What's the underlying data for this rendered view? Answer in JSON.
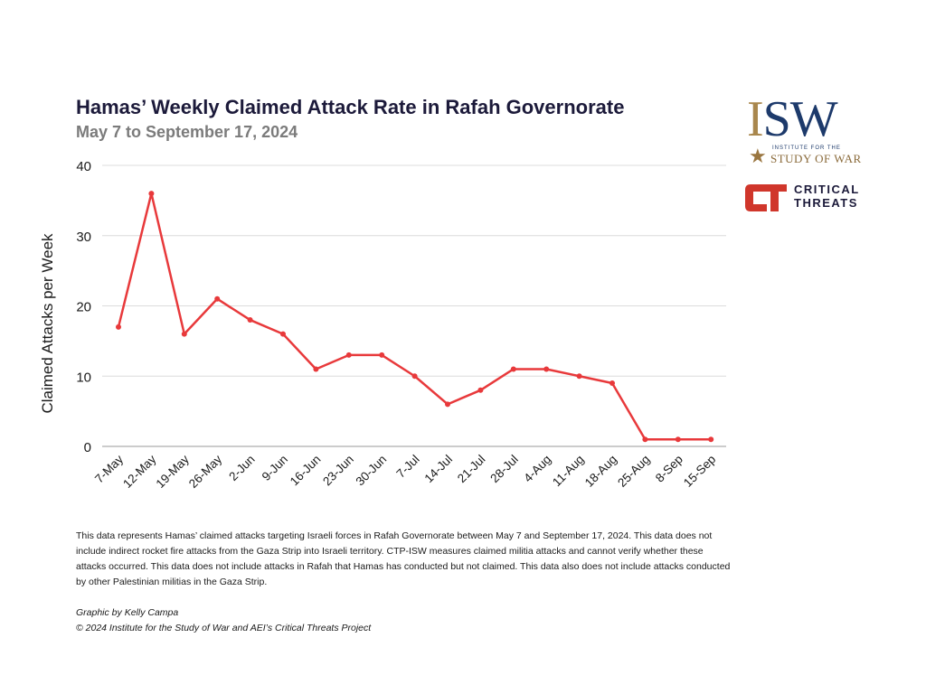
{
  "chart_data": {
    "type": "line",
    "title": "Hamas’ Weekly Claimed Attack Rate in Rafah Governorate",
    "subtitle": "May 7 to September 17, 2024",
    "xlabel": "",
    "ylabel": "Claimed Attacks per Week",
    "ylim": [
      0,
      40
    ],
    "yticks": [
      0,
      10,
      20,
      30,
      40
    ],
    "grid": true,
    "categories": [
      "7-May",
      "12-May",
      "19-May",
      "26-May",
      "2-Jun",
      "9-Jun",
      "16-Jun",
      "23-Jun",
      "30-Jun",
      "7-Jul",
      "14-Jul",
      "21-Jul",
      "28-Jul",
      "4-Aug",
      "11-Aug",
      "18-Aug",
      "25-Aug",
      "8-Sep",
      "15-Sep"
    ],
    "series": [
      {
        "name": "Claimed attacks",
        "color": "#e8393b",
        "values": [
          17,
          36,
          16,
          21,
          18,
          16,
          11,
          13,
          13,
          10,
          6,
          8,
          11,
          11,
          10,
          9,
          1,
          1,
          1
        ]
      }
    ]
  },
  "logos": {
    "isw": {
      "letters_i": "I",
      "letters_sw": "SW",
      "line1": "INSTITUTE FOR THE",
      "line2": "STUDY OF WAR",
      "star": "★"
    },
    "ct": {
      "line1": "CRITICAL",
      "line2": "THREATS"
    }
  },
  "note": "This data represents Hamas’ claimed attacks targeting Israeli forces in Rafah Governorate between May 7 and September 17, 2024. This data does not include indirect rocket fire attacks from the Gaza Strip into Israeli territory. CTP-ISW measures claimed militia attacks and cannot verify whether these attacks occurred. This data does not include attacks in Rafah that Hamas has conducted but not claimed. This data also does not include attacks conducted by other Palestinian militias in the Gaza Strip.",
  "credit": {
    "author": "Graphic by Kelly Campa",
    "copyright": "© 2024 Institute for the Study of War and AEI’s Critical Threats Project"
  }
}
